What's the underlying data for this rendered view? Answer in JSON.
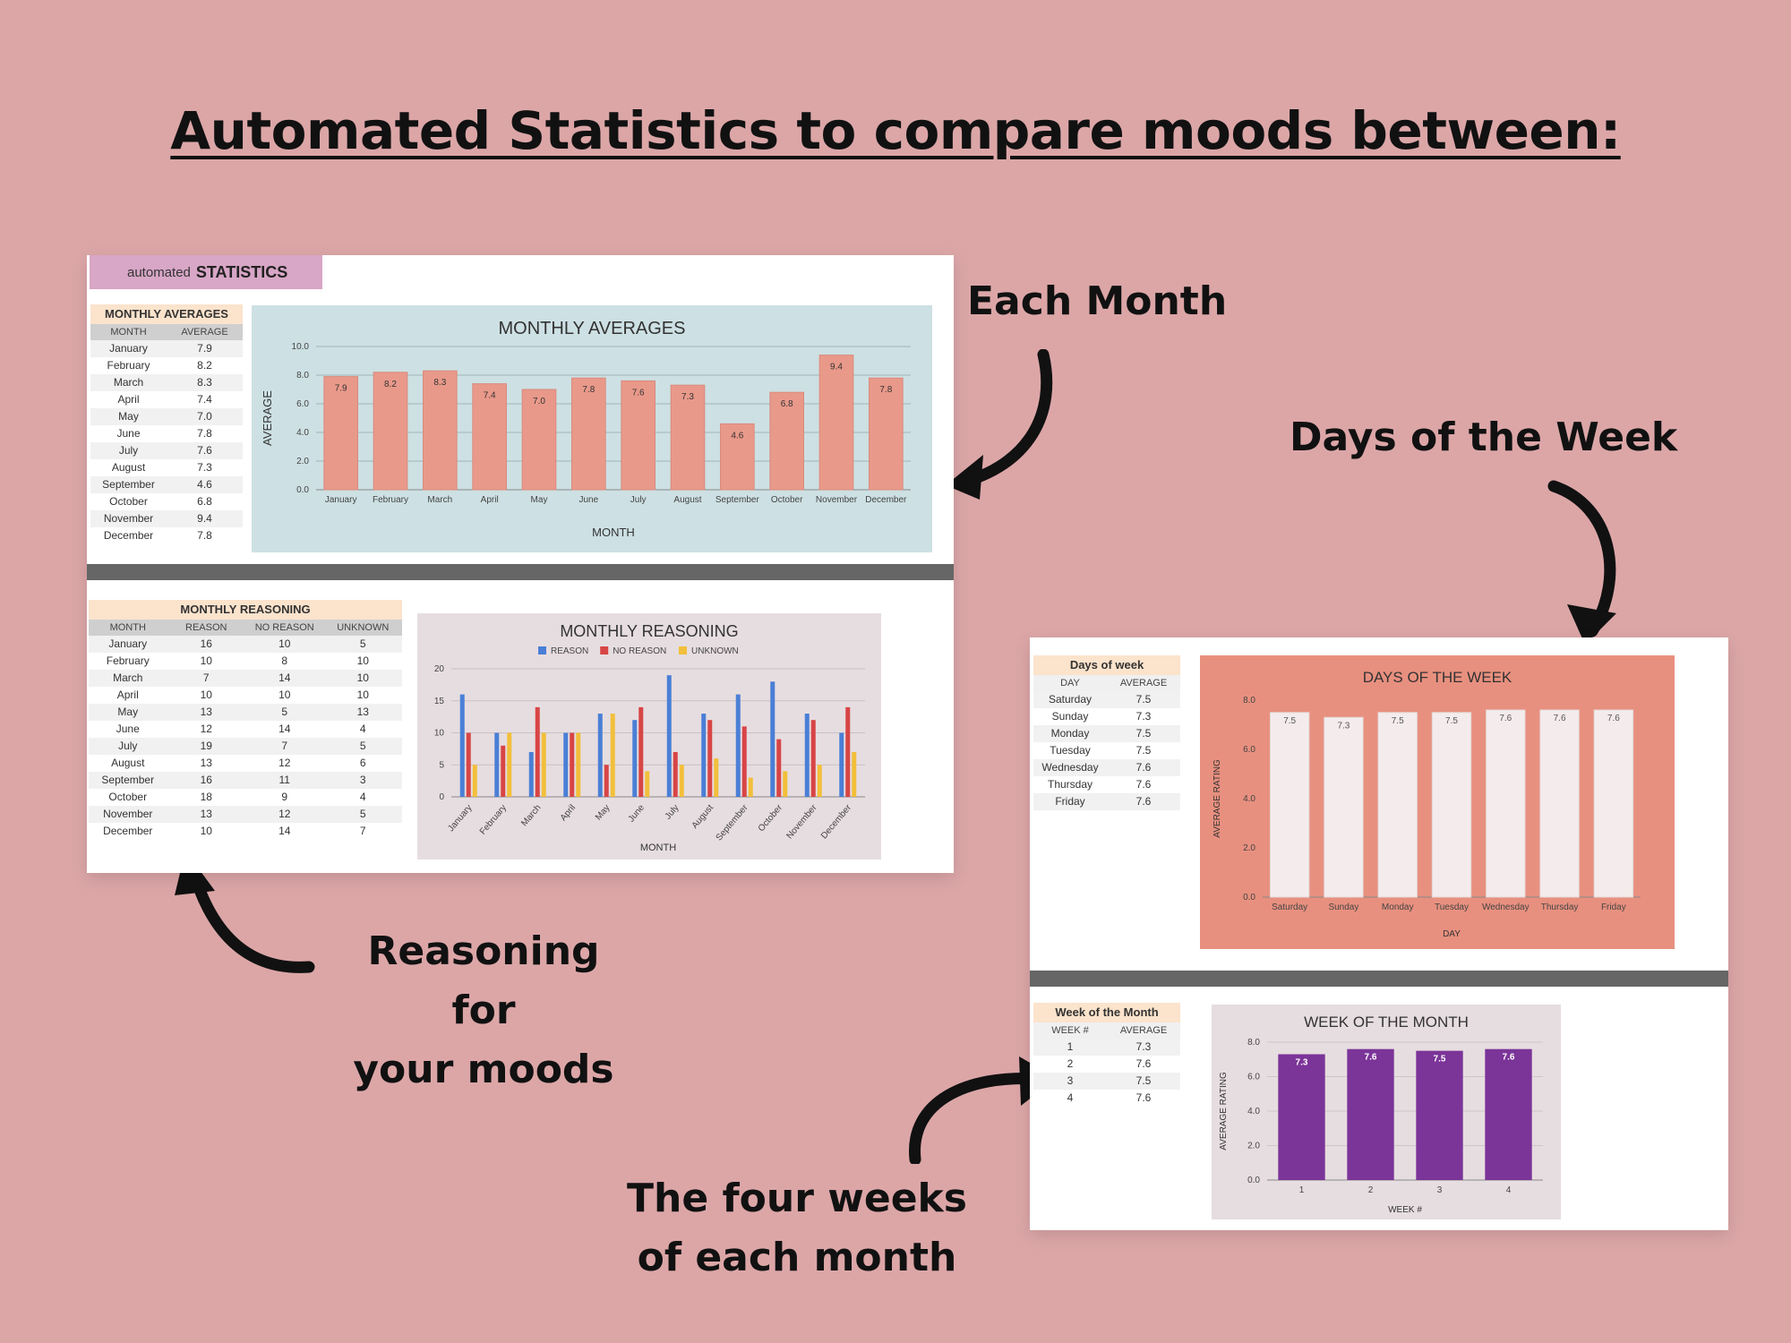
{
  "headline": "Automated Statistics to compare moods between:",
  "callouts": {
    "each_month": "Each Month",
    "days_of_week": "Days of the Week",
    "reasoning_line1": "Reasoning for",
    "reasoning_line2": "your moods",
    "weeks_line1": "The four weeks",
    "weeks_line2": "of each month"
  },
  "sheet1": {
    "tag_small": "automated",
    "tag_big": "STATISTICS",
    "monthly_averages_table": {
      "title": "MONTHLY AVERAGES",
      "columns": [
        "MONTH",
        "AVERAGE"
      ],
      "rows": [
        [
          "January",
          "7.9"
        ],
        [
          "February",
          "8.2"
        ],
        [
          "March",
          "8.3"
        ],
        [
          "April",
          "7.4"
        ],
        [
          "May",
          "7.0"
        ],
        [
          "June",
          "7.8"
        ],
        [
          "July",
          "7.6"
        ],
        [
          "August",
          "7.3"
        ],
        [
          "September",
          "4.6"
        ],
        [
          "October",
          "6.8"
        ],
        [
          "November",
          "9.4"
        ],
        [
          "December",
          "7.8"
        ]
      ]
    },
    "monthly_reasoning_table": {
      "title": "MONTHLY REASONING",
      "columns": [
        "MONTH",
        "REASON",
        "NO REASON",
        "UNKNOWN"
      ],
      "rows": [
        [
          "January",
          "16",
          "10",
          "5"
        ],
        [
          "February",
          "10",
          "8",
          "10"
        ],
        [
          "March",
          "7",
          "14",
          "10"
        ],
        [
          "April",
          "10",
          "10",
          "10"
        ],
        [
          "May",
          "13",
          "5",
          "13"
        ],
        [
          "June",
          "12",
          "14",
          "4"
        ],
        [
          "July",
          "19",
          "7",
          "5"
        ],
        [
          "August",
          "13",
          "12",
          "6"
        ],
        [
          "September",
          "16",
          "11",
          "3"
        ],
        [
          "October",
          "18",
          "9",
          "4"
        ],
        [
          "November",
          "13",
          "12",
          "5"
        ],
        [
          "December",
          "10",
          "14",
          "7"
        ]
      ]
    }
  },
  "sheet2": {
    "days_table": {
      "title": "Days of week",
      "columns": [
        "DAY",
        "AVERAGE"
      ],
      "rows": [
        [
          "Saturday",
          "7.5"
        ],
        [
          "Sunday",
          "7.3"
        ],
        [
          "Monday",
          "7.5"
        ],
        [
          "Tuesday",
          "7.5"
        ],
        [
          "Wednesday",
          "7.6"
        ],
        [
          "Thursday",
          "7.6"
        ],
        [
          "Friday",
          "7.6"
        ]
      ]
    },
    "weeks_table": {
      "title": "Week of the Month",
      "columns": [
        "WEEK #",
        "AVERAGE"
      ],
      "rows": [
        [
          "1",
          "7.3"
        ],
        [
          "2",
          "7.6"
        ],
        [
          "3",
          "7.5"
        ],
        [
          "4",
          "7.6"
        ]
      ]
    }
  },
  "colors": {
    "background": "#dca6a7",
    "monthly_bar": "#e9998a",
    "monthly_chart_bg": "#cde0e3",
    "reason": "#4a7fd6",
    "no_reason": "#d84545",
    "unknown": "#f2bf3a",
    "reasoning_chart_bg": "#e6dde0",
    "days_chart_bg": "#e8907f",
    "days_bar": "#f4ecec",
    "weeks_bar": "#7b3498",
    "weeks_chart_bg": "#e6dde0"
  },
  "chart_data": [
    {
      "type": "bar",
      "title": "MONTHLY AVERAGES",
      "xlabel": "MONTH",
      "ylabel": "AVERAGE",
      "ylim": [
        0,
        10
      ],
      "yticks": [
        "0.0",
        "2.0",
        "4.0",
        "6.0",
        "8.0",
        "10.0"
      ],
      "categories": [
        "January",
        "February",
        "March",
        "April",
        "May",
        "June",
        "July",
        "August",
        "September",
        "October",
        "November",
        "December"
      ],
      "values": [
        7.9,
        8.2,
        8.3,
        7.4,
        7.0,
        7.8,
        7.6,
        7.3,
        4.6,
        6.8,
        9.4,
        7.8
      ],
      "data_labels": [
        "7.9",
        "8.2",
        "8.3",
        "7.4",
        "7.0",
        "7.8",
        "7.6",
        "7.3",
        "4.6",
        "6.8",
        "9.4",
        "7.8"
      ],
      "grid": true
    },
    {
      "type": "bar",
      "title": "MONTHLY REASONING",
      "xlabel": "MONTH",
      "ylabel": "",
      "ylim": [
        0,
        20
      ],
      "yticks": [
        "0",
        "5",
        "10",
        "15",
        "20"
      ],
      "legend": "top",
      "categories": [
        "January",
        "February",
        "March",
        "April",
        "May",
        "June",
        "July",
        "August",
        "September",
        "October",
        "November",
        "December"
      ],
      "series": [
        {
          "name": "REASON",
          "values": [
            16,
            10,
            7,
            10,
            13,
            12,
            19,
            13,
            16,
            18,
            13,
            10
          ]
        },
        {
          "name": "NO REASON",
          "values": [
            10,
            8,
            14,
            10,
            5,
            14,
            7,
            12,
            11,
            9,
            12,
            14
          ]
        },
        {
          "name": "UNKNOWN",
          "values": [
            5,
            10,
            10,
            10,
            13,
            4,
            5,
            6,
            3,
            4,
            5,
            7
          ]
        }
      ],
      "grid": true
    },
    {
      "type": "bar",
      "title": "DAYS OF THE WEEK",
      "xlabel": "DAY",
      "ylabel": "AVERAGE RATING",
      "ylim": [
        0,
        8
      ],
      "yticks": [
        "0.0",
        "2.0",
        "4.0",
        "6.0",
        "8.0"
      ],
      "categories": [
        "Saturday",
        "Sunday",
        "Monday",
        "Tuesday",
        "Wednesday",
        "Thursday",
        "Friday"
      ],
      "values": [
        7.5,
        7.3,
        7.5,
        7.5,
        7.6,
        7.6,
        7.6
      ],
      "data_labels": [
        "7.5",
        "7.3",
        "7.5",
        "7.5",
        "7.6",
        "7.6",
        "7.6"
      ],
      "grid": false
    },
    {
      "type": "bar",
      "title": "WEEK OF THE MONTH",
      "xlabel": "WEEK #",
      "ylabel": "AVERAGE RATING",
      "ylim": [
        0,
        8
      ],
      "yticks": [
        "0.0",
        "2.0",
        "4.0",
        "6.0",
        "8.0"
      ],
      "categories": [
        "1",
        "2",
        "3",
        "4"
      ],
      "values": [
        7.3,
        7.6,
        7.5,
        7.6
      ],
      "data_labels": [
        "7.3",
        "7.6",
        "7.5",
        "7.6"
      ],
      "grid": true
    }
  ]
}
